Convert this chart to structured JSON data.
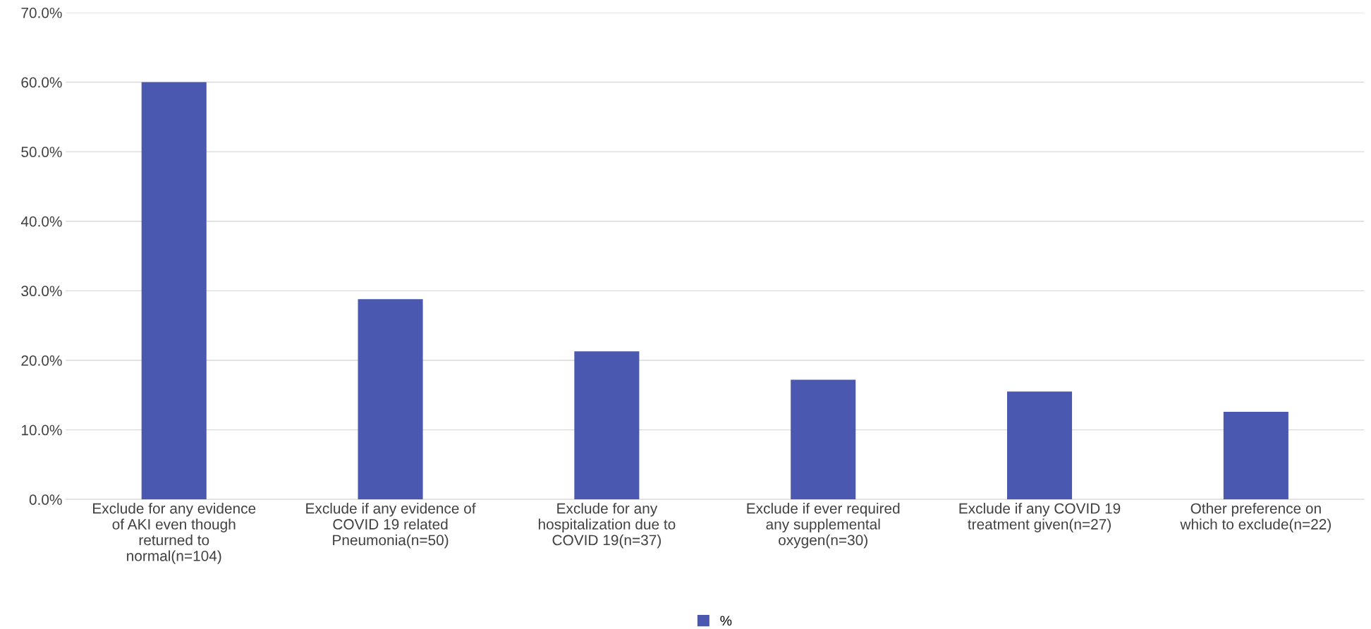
{
  "chart_data": {
    "type": "bar",
    "categories": [
      "Exclude for any evidence\nof AKI even though\nreturned to\nnormal(n=104)",
      "Exclude if any evidence of\nCOVID 19 related\nPneumonia(n=50)",
      "Exclude for any\nhospitalization due to\nCOVID 19(n=37)",
      "Exclude if ever required\nany supplemental\noxygen(n=30)",
      "Exclude if any COVID 19\ntreatment given(n=27)",
      "Other preference on\nwhich to exclude(n=22)"
    ],
    "series": [
      {
        "name": "%",
        "color": "#4a58b0",
        "values": [
          60.0,
          28.8,
          21.3,
          17.2,
          15.5,
          12.6
        ]
      }
    ],
    "ylim": [
      0,
      70
    ],
    "yticks": [
      {
        "value": 0,
        "label": "0.0%"
      },
      {
        "value": 10,
        "label": "10.0%"
      },
      {
        "value": 20,
        "label": "20.0%"
      },
      {
        "value": 30,
        "label": "30.0%"
      },
      {
        "value": 40,
        "label": "40.0%"
      },
      {
        "value": 50,
        "label": "50.0%"
      },
      {
        "value": 60,
        "label": "60.0%"
      },
      {
        "value": 70,
        "label": "70.0%"
      }
    ],
    "grid": "y",
    "legend": "bottom"
  }
}
